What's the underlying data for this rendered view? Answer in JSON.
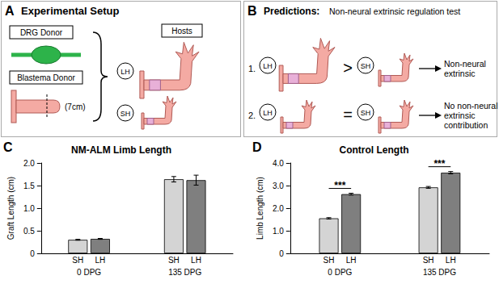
{
  "diagram": {
    "panel_a": {
      "letter": "A",
      "title": "Experimental Setup",
      "drg_donor": "DRG Donor",
      "blastema_donor": "Blastema Donor",
      "blastema_size": "(7cm)",
      "hosts": "Hosts",
      "host_types": [
        "LH",
        "SH"
      ]
    },
    "panel_b": {
      "letter": "B",
      "title": "Predictions:",
      "subtitle": "Non-neural extrinsic regulation test",
      "rows": [
        {
          "number": "1.",
          "left": "LH",
          "relation": ">",
          "right": "SH",
          "outcome": [
            "Non-neural",
            "extrinsic"
          ]
        },
        {
          "number": "2.",
          "left": "LH",
          "relation": "=",
          "right": "SH",
          "outcome": [
            "No non-neural",
            "extrinsic",
            "contribution"
          ]
        }
      ]
    }
  },
  "chart_data": [
    {
      "type": "bar",
      "panel": "C",
      "title": "NM-ALM Limb Length",
      "y_label": "Graft Length (cm)",
      "categories": [
        "0 DPG",
        "135 DPG"
      ],
      "series": [
        {
          "name": "SH",
          "color": "#d4d4d4",
          "values": [
            0.3,
            1.64
          ],
          "errors": [
            0.01,
            0.06
          ]
        },
        {
          "name": "LH",
          "color": "#7f7f7f",
          "values": [
            0.32,
            1.62
          ],
          "errors": [
            0.01,
            0.11
          ]
        }
      ],
      "ylim": [
        0,
        2
      ],
      "yticks": [
        0,
        0.5,
        {
          "value": 1,
          "label": "1.0"
        },
        1.5,
        {
          "value": 2,
          "label": "2.0"
        }
      ],
      "grid": false
    },
    {
      "type": "bar",
      "panel": "D",
      "title": "Control Length",
      "y_label": "Limb Length (cm)",
      "categories": [
        "0 DPG",
        "135 DPG"
      ],
      "series": [
        {
          "name": "SH",
          "color": "#d4d4d4",
          "values": [
            1.55,
            2.92
          ],
          "errors": [
            0.03,
            0.04
          ]
        },
        {
          "name": "LH",
          "color": "#7f7f7f",
          "values": [
            2.62,
            3.57
          ],
          "errors": [
            0.04,
            0.05
          ]
        }
      ],
      "annotations": [
        {
          "category": "0 DPG",
          "text": "***"
        },
        {
          "category": "135 DPG",
          "text": "***"
        }
      ],
      "ylim": [
        0,
        4
      ],
      "yticks": [
        0,
        {
          "value": 1,
          "label": "1.0"
        },
        {
          "value": 2,
          "label": "2.0"
        },
        {
          "value": 3,
          "label": "3.0"
        },
        {
          "value": 4,
          "label": "4.0"
        }
      ],
      "grid": false
    }
  ]
}
